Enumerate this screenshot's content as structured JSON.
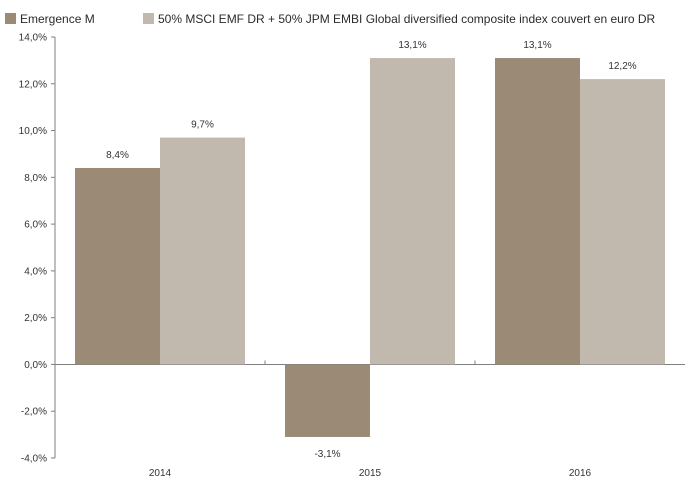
{
  "chart_data": {
    "type": "bar",
    "categories": [
      "2014",
      "2015",
      "2016"
    ],
    "series": [
      {
        "name": "Emergence M",
        "values": [
          8.4,
          -3.1,
          13.1
        ],
        "labels": [
          "8,4%",
          "-3,1%",
          "13,1%"
        ],
        "color": "#9a8a76"
      },
      {
        "name": "50% MSCI EMF DR + 50% JPM EMBI Global diversified composite index couvert en euro DR",
        "values": [
          9.7,
          13.1,
          12.2
        ],
        "labels": [
          "9,7%",
          "13,1%",
          "12,2%"
        ],
        "color": "#c2b9ae"
      }
    ],
    "ylim": [
      -4,
      14
    ],
    "yticks": [
      -4,
      -2,
      0,
      2,
      4,
      6,
      8,
      10,
      12,
      14
    ],
    "ytick_labels": [
      "-4,0%",
      "-2,0%",
      "0,0%",
      "2,0%",
      "4,0%",
      "6,0%",
      "8,0%",
      "10,0%",
      "12,0%",
      "14,0%"
    ],
    "legend_position": "top-left",
    "grid": false
  }
}
